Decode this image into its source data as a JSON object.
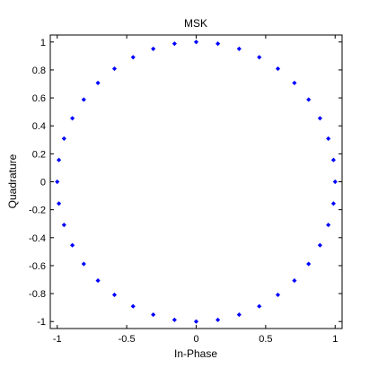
{
  "chart_data": {
    "type": "scatter",
    "title": "MSK",
    "xlabel": "In-Phase",
    "ylabel": "Quadrature",
    "xlim": [
      -1.05,
      1.05
    ],
    "ylim": [
      -1.05,
      1.05
    ],
    "grid": false,
    "x_ticks": [
      -1,
      -0.5,
      0,
      0.5,
      1
    ],
    "x_tick_labels": [
      "-1",
      "-0.5",
      "0",
      "0.5",
      "1"
    ],
    "y_ticks": [
      -1,
      -0.8,
      -0.6,
      -0.4,
      -0.2,
      0,
      0.2,
      0.4,
      0.6,
      0.8,
      1
    ],
    "y_tick_labels": [
      "-1",
      "-0.8",
      "-0.6",
      "-0.4",
      "-0.2",
      "0",
      "0.2",
      "0.4",
      "0.6",
      "0.8",
      "1"
    ],
    "marker_color": "#0000ff",
    "series": [
      {
        "x": [
          1,
          0.988,
          0.951,
          0.891,
          0.809,
          0.707,
          0.588,
          0.454,
          0.309,
          0.156,
          0,
          -0.156,
          -0.309,
          -0.454,
          -0.588,
          -0.707,
          -0.809,
          -0.891,
          -0.951,
          -0.988,
          -1,
          -0.988,
          -0.951,
          -0.891,
          -0.809,
          -0.707,
          -0.588,
          -0.454,
          -0.309,
          -0.156,
          0,
          0.156,
          0.309,
          0.454,
          0.588,
          0.707,
          0.809,
          0.891,
          0.951,
          0.988
        ],
        "y": [
          0,
          0.156,
          0.309,
          0.454,
          0.588,
          0.707,
          0.809,
          0.891,
          0.951,
          0.988,
          1,
          0.988,
          0.951,
          0.891,
          0.809,
          0.707,
          0.588,
          0.454,
          0.309,
          0.156,
          0,
          -0.156,
          -0.309,
          -0.454,
          -0.588,
          -0.707,
          -0.809,
          -0.891,
          -0.951,
          -0.988,
          -1,
          -0.988,
          -0.951,
          -0.891,
          -0.809,
          -0.707,
          -0.588,
          -0.454,
          -0.309,
          -0.156
        ]
      }
    ]
  }
}
